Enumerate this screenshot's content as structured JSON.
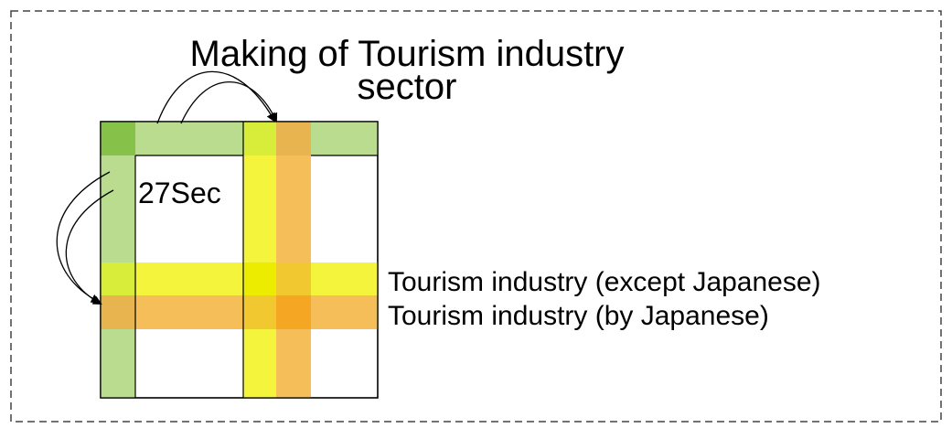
{
  "title": {
    "line1": "Making of Tourism industry",
    "line2": "sector"
  },
  "matrix": {
    "block_label": "27Sec"
  },
  "rows": {
    "except_japanese": "Tourism industry (except Japanese)",
    "by_japanese": "Tourism industry (by Japanese)"
  }
}
